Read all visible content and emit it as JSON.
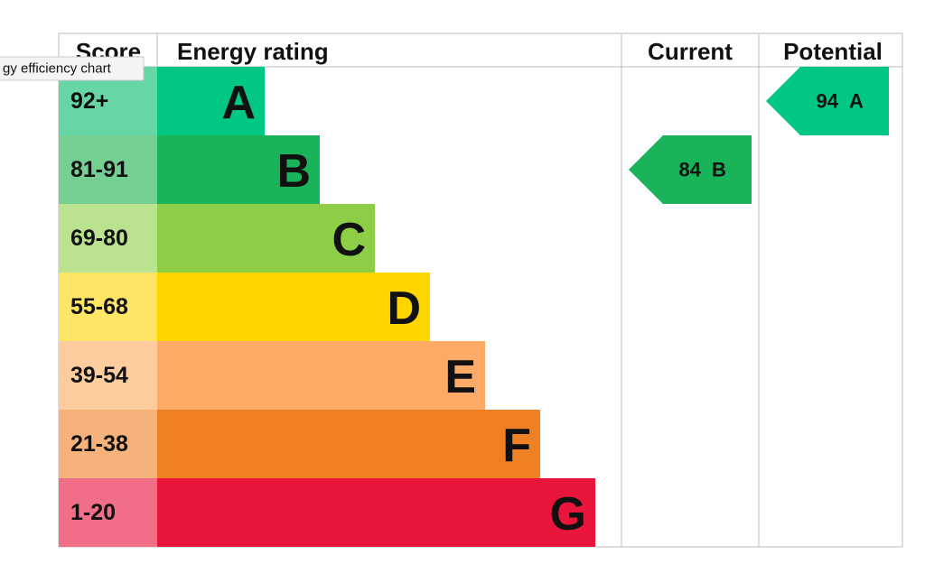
{
  "chart_data": {
    "type": "epc",
    "headers": [
      "Score",
      "Energy rating",
      "Current",
      "Potential"
    ],
    "bands": [
      {
        "range": "92+",
        "letter": "A",
        "color": "#00c781",
        "score_color": "#66d6a4"
      },
      {
        "range": "81-91",
        "letter": "B",
        "color": "#19b459",
        "score_color": "#75cf93"
      },
      {
        "range": "69-80",
        "letter": "C",
        "color": "#8dce46",
        "score_color": "#bbe28f"
      },
      {
        "range": "55-68",
        "letter": "D",
        "color": "#ffd500",
        "score_color": "#ffe566"
      },
      {
        "range": "39-54",
        "letter": "E",
        "color": "#fcaa65",
        "score_color": "#fdcc9f"
      },
      {
        "range": "21-38",
        "letter": "F",
        "color": "#ef8023",
        "score_color": "#f5b27a"
      },
      {
        "range": "1-20",
        "letter": "G",
        "color": "#e9153b",
        "score_color": "#f06e87"
      }
    ],
    "current": {
      "value": 84,
      "letter": "B"
    },
    "potential": {
      "value": 94,
      "letter": "A"
    }
  },
  "tooltip": "gy efficiency chart"
}
